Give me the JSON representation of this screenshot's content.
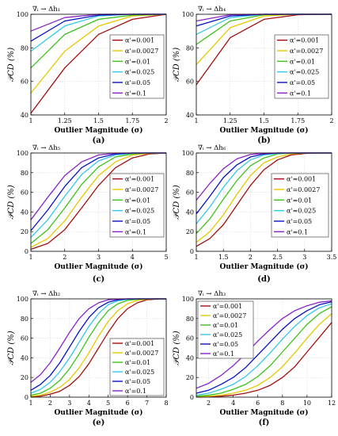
{
  "series_names": [
    "α'=0.001",
    "α'=0.0027",
    "α'=0.01",
    "α'=0.025",
    "α'=0.05",
    "α'=0.1"
  ],
  "series_colors": [
    "#a21010",
    "#e6c800",
    "#3cc21a",
    "#35c8e8",
    "#0a10c0",
    "#8a22c8"
  ],
  "chart_data": [
    {
      "type": "line",
      "panel": "(a)",
      "title": "∇ᵢ → Δh₁",
      "xlabel": "Outlier Magnitude (σ)",
      "ylabel": "𝒫CD (%)",
      "xlim": [
        1,
        2
      ],
      "ylim": [
        40,
        100
      ],
      "xticks": [
        "1",
        "1.25",
        "1.5",
        "1.75",
        "2"
      ],
      "yticks": [
        "40",
        "60",
        "80",
        "100"
      ],
      "legend_position": "right",
      "grid": true,
      "x": [
        1.0,
        1.25,
        1.5,
        1.75,
        2.0
      ],
      "series": [
        {
          "name": "α'=0.001",
          "values": [
            41,
            68,
            88,
            97,
            100
          ]
        },
        {
          "name": "α'=0.0027",
          "values": [
            53,
            78,
            93,
            99,
            100
          ]
        },
        {
          "name": "α'=0.01",
          "values": [
            68,
            88,
            97,
            99.5,
            100
          ]
        },
        {
          "name": "α'=0.025",
          "values": [
            78,
            93,
            99,
            100,
            100
          ]
        },
        {
          "name": "α'=0.05",
          "values": [
            84,
            96,
            99.5,
            100,
            100
          ]
        },
        {
          "name": "α'=0.1",
          "values": [
            90,
            98,
            100,
            100,
            100
          ]
        }
      ]
    },
    {
      "type": "line",
      "panel": "(b)",
      "title": "∇ᵢ → Δh₄",
      "xlabel": "Outlier Magnitude (σ)",
      "ylabel": "𝒫CD (%)",
      "xlim": [
        1,
        2
      ],
      "ylim": [
        40,
        100
      ],
      "xticks": [
        "1",
        "1.25",
        "1.5",
        "1.75",
        "2"
      ],
      "yticks": [
        "40",
        "60",
        "80",
        "100"
      ],
      "legend_position": "right",
      "grid": true,
      "x": [
        1.0,
        1.25,
        1.5,
        1.75,
        2.0
      ],
      "series": [
        {
          "name": "α'=0.001",
          "values": [
            58,
            86,
            97,
            99.7,
            100
          ]
        },
        {
          "name": "α'=0.0027",
          "values": [
            70,
            92,
            99,
            100,
            100
          ]
        },
        {
          "name": "α'=0.01",
          "values": [
            82,
            96,
            99.7,
            100,
            100
          ]
        },
        {
          "name": "α'=0.025",
          "values": [
            88,
            98,
            100,
            100,
            100
          ]
        },
        {
          "name": "α'=0.05",
          "values": [
            93,
            99,
            100,
            100,
            100
          ]
        },
        {
          "name": "α'=0.1",
          "values": [
            96,
            99.7,
            100,
            100,
            100
          ]
        }
      ]
    },
    {
      "type": "line",
      "panel": "(c)",
      "title": "∇ᵢ → Δh₅",
      "xlabel": "Outlier Magnitude (σ)",
      "ylabel": "𝒫CD (%)",
      "xlim": [
        1,
        5
      ],
      "ylim": [
        0,
        100
      ],
      "xticks": [
        "1",
        "2",
        "3",
        "4",
        "5"
      ],
      "yticks": [
        "0",
        "20",
        "40",
        "60",
        "80",
        "100"
      ],
      "legend_position": "right",
      "grid": true,
      "x": [
        1.0,
        1.5,
        2.0,
        2.5,
        3.0,
        3.5,
        4.0,
        4.5,
        5.0
      ],
      "series": [
        {
          "name": "α'=0.001",
          "values": [
            2,
            8,
            22,
            44,
            67,
            85,
            95,
            99,
            100
          ]
        },
        {
          "name": "α'=0.0027",
          "values": [
            4,
            13,
            31,
            55,
            77,
            91,
            98,
            99.5,
            100
          ]
        },
        {
          "name": "α'=0.01",
          "values": [
            8,
            22,
            44,
            68,
            86,
            96,
            99,
            100,
            100
          ]
        },
        {
          "name": "α'=0.025",
          "values": [
            14,
            32,
            56,
            78,
            92,
            98,
            99.7,
            100,
            100
          ]
        },
        {
          "name": "α'=0.05",
          "values": [
            21,
            42,
            66,
            85,
            95,
            99,
            100,
            100,
            100
          ]
        },
        {
          "name": "α'=0.1",
          "values": [
            32,
            55,
            77,
            91,
            98,
            99.7,
            100,
            100,
            100
          ]
        }
      ]
    },
    {
      "type": "line",
      "panel": "(d)",
      "title": "∇ᵢ → Δh₆",
      "xlabel": "Outlier Magnitude (σ)",
      "ylabel": "𝒫CD (%)",
      "xlim": [
        1,
        3.5
      ],
      "ylim": [
        0,
        100
      ],
      "xticks": [
        "1",
        "1.5",
        "2",
        "2.5",
        "3",
        "3.5"
      ],
      "yticks": [
        "0",
        "20",
        "40",
        "60",
        "80",
        "100"
      ],
      "legend_position": "right",
      "grid": true,
      "x": [
        1.0,
        1.25,
        1.5,
        1.75,
        2.0,
        2.25,
        2.5,
        2.75,
        3.0,
        3.25,
        3.5
      ],
      "series": [
        {
          "name": "α'=0.001",
          "values": [
            5,
            13,
            27,
            47,
            67,
            83,
            93,
            98,
            99.5,
            100,
            100
          ]
        },
        {
          "name": "α'=0.0027",
          "values": [
            9,
            20,
            37,
            58,
            77,
            90,
            96,
            99,
            100,
            100,
            100
          ]
        },
        {
          "name": "α'=0.01",
          "values": [
            18,
            33,
            53,
            72,
            87,
            95,
            99,
            100,
            100,
            100,
            100
          ]
        },
        {
          "name": "α'=0.025",
          "values": [
            28,
            45,
            65,
            82,
            93,
            98,
            99.5,
            100,
            100,
            100,
            100
          ]
        },
        {
          "name": "α'=0.05",
          "values": [
            38,
            56,
            75,
            88,
            96,
            99,
            100,
            100,
            100,
            100,
            100
          ]
        },
        {
          "name": "α'=0.1",
          "values": [
            52,
            69,
            84,
            94,
            98.5,
            99.7,
            100,
            100,
            100,
            100,
            100
          ]
        }
      ]
    },
    {
      "type": "line",
      "panel": "(e)",
      "title": "∇ᵢ → Δh₂",
      "xlabel": "Outlier Magnitude (σ)",
      "ylabel": "𝒫CD (%)",
      "xlim": [
        1,
        8
      ],
      "ylim": [
        0,
        100
      ],
      "xticks": [
        "1",
        "2",
        "3",
        "4",
        "5",
        "6",
        "7",
        "8"
      ],
      "yticks": [
        "0",
        "20",
        "40",
        "60",
        "80",
        "100"
      ],
      "legend_position": "bottom-right",
      "grid": true,
      "x": [
        1,
        1.5,
        2,
        2.5,
        3,
        3.5,
        4,
        4.5,
        5,
        5.5,
        6,
        6.5,
        7,
        7.5,
        8
      ],
      "series": [
        {
          "name": "α'=0.001",
          "values": [
            0.5,
            1,
            3,
            6,
            12,
            21,
            34,
            50,
            66,
            80,
            90,
            96,
            99,
            99.7,
            100
          ]
        },
        {
          "name": "α'=0.0027",
          "values": [
            1,
            2,
            5,
            10,
            18,
            30,
            45,
            62,
            77,
            88,
            95,
            98.5,
            99.5,
            100,
            100
          ]
        },
        {
          "name": "α'=0.01",
          "values": [
            2,
            4,
            9,
            17,
            29,
            44,
            61,
            76,
            88,
            95,
            98.5,
            99.5,
            100,
            100,
            100
          ]
        },
        {
          "name": "α'=0.025",
          "values": [
            4,
            8,
            15,
            26,
            40,
            56,
            72,
            85,
            94,
            98,
            99.5,
            100,
            100,
            100,
            100
          ]
        },
        {
          "name": "α'=0.05",
          "values": [
            7,
            13,
            22,
            35,
            51,
            67,
            81,
            91,
            96.5,
            99,
            100,
            100,
            100,
            100,
            100
          ]
        },
        {
          "name": "α'=0.1",
          "values": [
            15,
            23,
            35,
            50,
            66,
            80,
            90,
            96,
            99,
            99.7,
            100,
            100,
            100,
            100,
            100
          ]
        }
      ]
    },
    {
      "type": "line",
      "panel": "(f)",
      "title": "∇ᵢ → Δh₃",
      "xlabel": "Outlier Magnitude (σ)",
      "ylabel": "𝒫CD (%)",
      "xlim": [
        1,
        12
      ],
      "ylim": [
        0,
        100
      ],
      "xticks": [
        "2",
        "4",
        "6",
        "8",
        "10",
        "12"
      ],
      "yticks": [
        "0",
        "20",
        "40",
        "60",
        "80",
        "100"
      ],
      "legend_position": "top-left",
      "grid": true,
      "x": [
        1,
        2,
        3,
        4,
        5,
        6,
        7,
        8,
        9,
        10,
        11,
        12
      ],
      "series": [
        {
          "name": "α'=0.001",
          "values": [
            0.2,
            0.5,
            1,
            2,
            4,
            7,
            12,
            20,
            31,
            46,
            61,
            76
          ]
        },
        {
          "name": "α'=0.0027",
          "values": [
            0.5,
            1,
            2,
            4,
            7,
            12,
            20,
            31,
            45,
            60,
            74,
            85
          ]
        },
        {
          "name": "α'=0.01",
          "values": [
            1,
            2,
            4,
            8,
            13,
            21,
            32,
            46,
            60,
            74,
            85,
            92
          ]
        },
        {
          "name": "α'=0.025",
          "values": [
            2,
            4,
            8,
            13,
            21,
            32,
            45,
            59,
            72,
            83,
            91,
            95
          ]
        },
        {
          "name": "α'=0.05",
          "values": [
            4,
            7,
            13,
            20,
            30,
            43,
            56,
            69,
            80,
            88,
            94,
            97
          ]
        },
        {
          "name": "α'=0.1",
          "values": [
            9,
            14,
            22,
            32,
            44,
            57,
            69,
            80,
            88,
            93,
            96.5,
            98
          ]
        }
      ]
    }
  ]
}
